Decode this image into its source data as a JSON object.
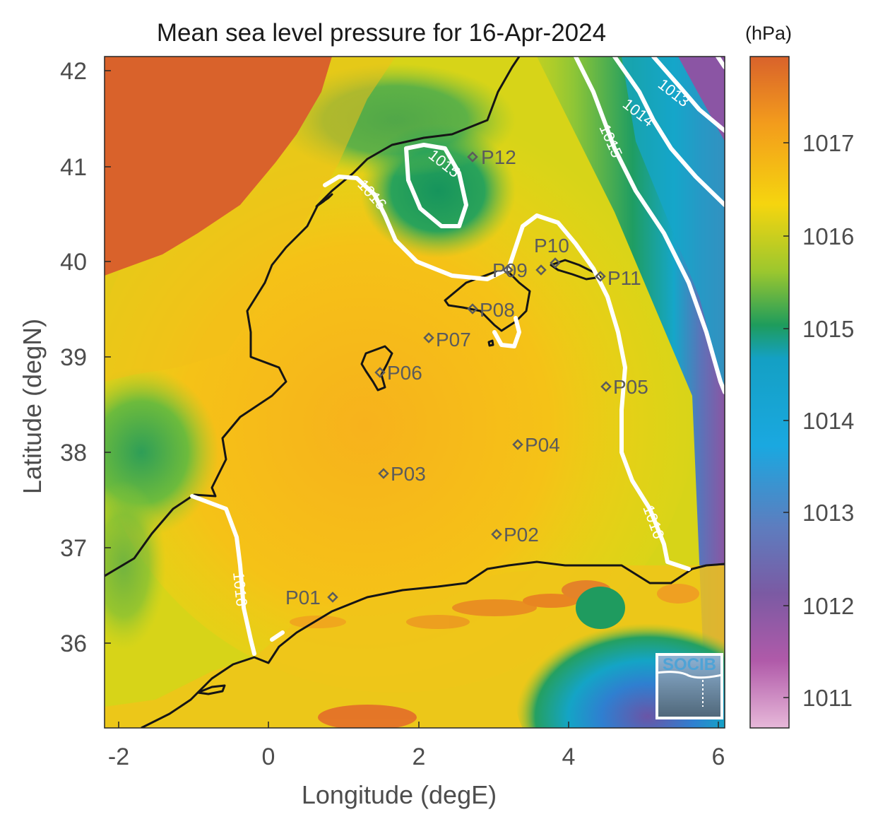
{
  "title": "Mean sea level pressure for 16-Apr-2024",
  "x_axis": {
    "label": "Longitude (degE)",
    "ticks": [
      "-2",
      "0",
      "2",
      "4",
      "6"
    ]
  },
  "y_axis": {
    "label": "Latitude (degN)",
    "ticks": [
      "42",
      "41",
      "40",
      "39",
      "38",
      "37",
      "36"
    ]
  },
  "colorbar": {
    "unit": "(hPa)",
    "ticks": [
      "1017",
      "1016",
      "1015",
      "1014",
      "1013",
      "1012",
      "1011"
    ],
    "colors": [
      "#d9622b",
      "#f39c1c",
      "#f5d50f",
      "#9cc72e",
      "#1e9c5c",
      "#14a0c4",
      "#1aa8e0",
      "#5d7dbf",
      "#7b5aa3",
      "#b05aa9",
      "#e7b8d9"
    ]
  },
  "contour_labels": [
    "1013",
    "1014",
    "1015",
    "1015",
    "1016",
    "1016",
    "1016"
  ],
  "points": [
    {
      "label": "P01"
    },
    {
      "label": "P02"
    },
    {
      "label": "P03"
    },
    {
      "label": "P04"
    },
    {
      "label": "P05"
    },
    {
      "label": "P06"
    },
    {
      "label": "P07"
    },
    {
      "label": "P08"
    },
    {
      "label": "P09"
    },
    {
      "label": "P10"
    },
    {
      "label": "P11"
    },
    {
      "label": "P12"
    }
  ],
  "logo": "SOCIB",
  "chart_data": {
    "type": "heatmap",
    "title": "Mean sea level pressure for 16-Apr-2024",
    "xlabel": "Longitude (degE)",
    "ylabel": "Latitude (degN)",
    "xlim": [
      -2.3,
      6.0
    ],
    "ylim": [
      35.1,
      42.2
    ],
    "colorbar_range_hPa": [
      1010.7,
      1017.9
    ],
    "colorbar_unit": "(hPa)",
    "contour_levels_hPa": [
      1013,
      1014,
      1015,
      1016
    ],
    "points": [
      {
        "name": "P01",
        "lon": 0.85,
        "lat": 36.5
      },
      {
        "name": "P02",
        "lon": 3.0,
        "lat": 37.15
      },
      {
        "name": "P03",
        "lon": 1.55,
        "lat": 37.8
      },
      {
        "name": "P04",
        "lon": 3.3,
        "lat": 38.1
      },
      {
        "name": "P05",
        "lon": 4.5,
        "lat": 38.7
      },
      {
        "name": "P06",
        "lon": 1.5,
        "lat": 38.85
      },
      {
        "name": "P07",
        "lon": 2.15,
        "lat": 39.2
      },
      {
        "name": "P08",
        "lon": 2.7,
        "lat": 39.5
      },
      {
        "name": "P09",
        "lon": 3.1,
        "lat": 39.9
      },
      {
        "name": "P10",
        "lon": 3.8,
        "lat": 40.0
      },
      {
        "name": "P11",
        "lon": 4.4,
        "lat": 39.85
      },
      {
        "name": "P12",
        "lon": 2.7,
        "lat": 41.1
      }
    ]
  }
}
